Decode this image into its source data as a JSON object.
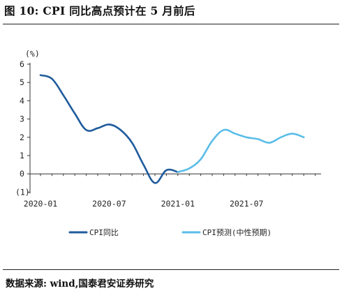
{
  "figure": {
    "title": "图 10:   CPI 同比高点预计在 5 月前后",
    "source": "数据来源: wind,国泰君安证券研究"
  },
  "chart_data": {
    "type": "line",
    "title": "CPI 同比高点预计在 5 月前后",
    "ylabel": "(%)",
    "ylim": [
      -1,
      6
    ],
    "y_ticks": [
      {
        "value": 6,
        "label": "6"
      },
      {
        "value": 5,
        "label": "5"
      },
      {
        "value": 4,
        "label": "4"
      },
      {
        "value": 3,
        "label": "3"
      },
      {
        "value": 2,
        "label": "2"
      },
      {
        "value": 1,
        "label": "1"
      },
      {
        "value": 0,
        "label": "0"
      },
      {
        "value": -1,
        "label": "(1)"
      }
    ],
    "negative_label_color": "#cc0000",
    "x_ticks": [
      {
        "index": 0,
        "label": "2020-01"
      },
      {
        "index": 6,
        "label": "2020-07"
      },
      {
        "index": 12,
        "label": "2021-01"
      },
      {
        "index": 18,
        "label": "2021-07"
      }
    ],
    "series": [
      {
        "name": "CPI同比",
        "color": "#1f5b9c",
        "points": [
          {
            "x": "2020-01",
            "y": 5.4
          },
          {
            "x": "2020-02",
            "y": 5.2
          },
          {
            "x": "2020-03",
            "y": 4.3
          },
          {
            "x": "2020-04",
            "y": 3.3
          },
          {
            "x": "2020-05",
            "y": 2.4
          },
          {
            "x": "2020-06",
            "y": 2.5
          },
          {
            "x": "2020-07",
            "y": 2.7
          },
          {
            "x": "2020-08",
            "y": 2.4
          },
          {
            "x": "2020-09",
            "y": 1.7
          },
          {
            "x": "2020-10",
            "y": 0.5
          },
          {
            "x": "2020-11",
            "y": -0.5
          },
          {
            "x": "2020-12",
            "y": 0.2
          },
          {
            "x": "2021-01",
            "y": 0.1
          }
        ]
      },
      {
        "name": "CPI预测(中性预期)",
        "color": "#5bbde8",
        "points": [
          {
            "x": "2021-01",
            "y": 0.1
          },
          {
            "x": "2021-02",
            "y": 0.3
          },
          {
            "x": "2021-03",
            "y": 0.8
          },
          {
            "x": "2021-04",
            "y": 1.8
          },
          {
            "x": "2021-05",
            "y": 2.4
          },
          {
            "x": "2021-06",
            "y": 2.2
          },
          {
            "x": "2021-07",
            "y": 2.0
          },
          {
            "x": "2021-08",
            "y": 1.9
          },
          {
            "x": "2021-09",
            "y": 1.7
          },
          {
            "x": "2021-10",
            "y": 2.0
          },
          {
            "x": "2021-11",
            "y": 2.2
          },
          {
            "x": "2021-12",
            "y": 2.0
          }
        ]
      }
    ],
    "legend_position": "bottom",
    "grid": false
  }
}
